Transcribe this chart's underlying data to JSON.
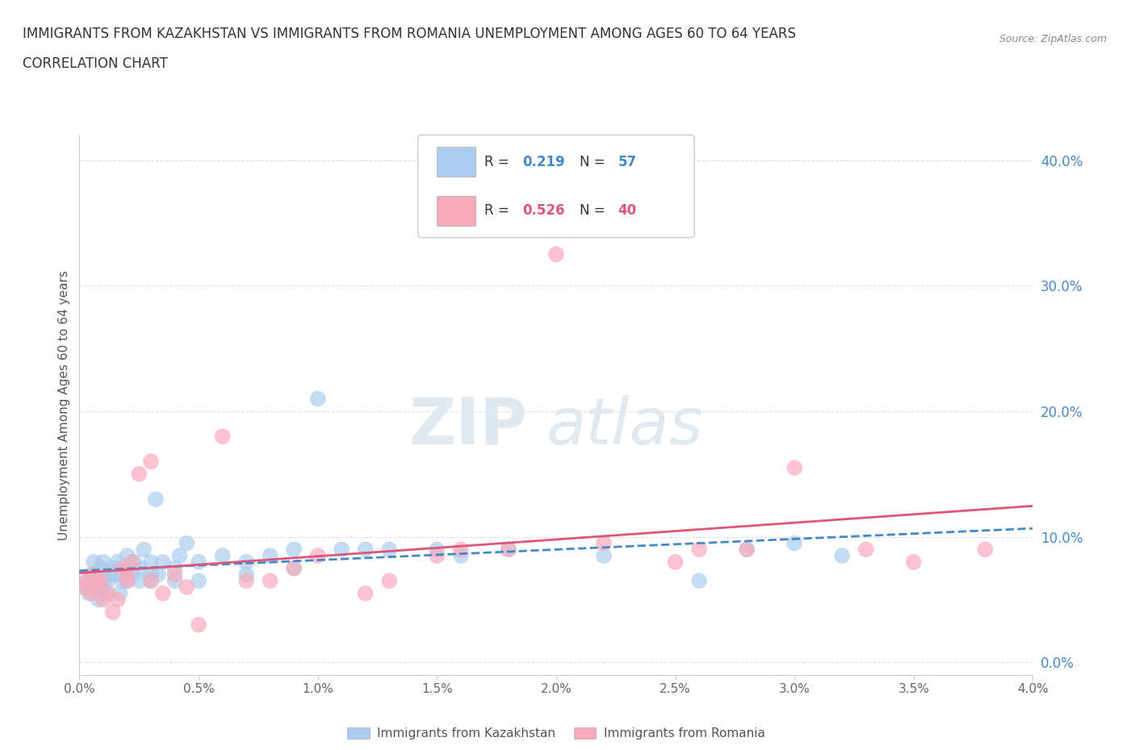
{
  "title_line1": "IMMIGRANTS FROM KAZAKHSTAN VS IMMIGRANTS FROM ROMANIA UNEMPLOYMENT AMONG AGES 60 TO 64 YEARS",
  "title_line2": "CORRELATION CHART",
  "source_text": "Source: ZipAtlas.com",
  "ylabel": "Unemployment Among Ages 60 to 64 years",
  "xlim": [
    0.0,
    0.04
  ],
  "ylim": [
    -0.01,
    0.42
  ],
  "xtick_labels": [
    "0.0%",
    "",
    "0.5%",
    "",
    "1.0%",
    "",
    "1.5%",
    "",
    "2.0%",
    "",
    "2.5%",
    "",
    "3.0%",
    "",
    "3.5%",
    "",
    "4.0%"
  ],
  "xtick_values": [
    0.0,
    0.0025,
    0.005,
    0.0075,
    0.01,
    0.0125,
    0.015,
    0.0175,
    0.02,
    0.0225,
    0.025,
    0.0275,
    0.03,
    0.0325,
    0.035,
    0.0375,
    0.04
  ],
  "ytick_labels": [
    "0.0%",
    "10.0%",
    "20.0%",
    "30.0%",
    "40.0%"
  ],
  "ytick_values": [
    0.0,
    0.1,
    0.2,
    0.3,
    0.4
  ],
  "kazakhstan_color": "#aaccee",
  "romania_color": "#f8aabb",
  "kazakhstan_line_color": "#4488cc",
  "romania_line_color": "#dd5577",
  "legend_R_kaz": "0.219",
  "legend_N_kaz": "57",
  "legend_R_rom": "0.526",
  "legend_N_rom": "40",
  "watermark_zip": "ZIP",
  "watermark_atlas": "atlas",
  "legend_label_kaz": "Immigrants from Kazakhstan",
  "legend_label_rom": "Immigrants from Romania",
  "kazakhstan_x": [
    0.0002,
    0.0003,
    0.0004,
    0.0005,
    0.0006,
    0.0006,
    0.0007,
    0.0008,
    0.0009,
    0.001,
    0.001,
    0.0011,
    0.0012,
    0.0013,
    0.0014,
    0.0015,
    0.0016,
    0.0017,
    0.0018,
    0.002,
    0.002,
    0.002,
    0.0022,
    0.0023,
    0.0025,
    0.0026,
    0.0027,
    0.003,
    0.003,
    0.003,
    0.0032,
    0.0033,
    0.0035,
    0.004,
    0.004,
    0.0042,
    0.0045,
    0.005,
    0.005,
    0.006,
    0.007,
    0.007,
    0.008,
    0.009,
    0.009,
    0.01,
    0.011,
    0.012,
    0.013,
    0.015,
    0.016,
    0.018,
    0.022,
    0.026,
    0.028,
    0.03,
    0.032
  ],
  "kazakhstan_y": [
    0.06,
    0.065,
    0.055,
    0.07,
    0.06,
    0.08,
    0.065,
    0.05,
    0.075,
    0.06,
    0.08,
    0.055,
    0.065,
    0.07,
    0.075,
    0.07,
    0.08,
    0.055,
    0.065,
    0.065,
    0.075,
    0.085,
    0.07,
    0.08,
    0.065,
    0.075,
    0.09,
    0.07,
    0.065,
    0.08,
    0.13,
    0.07,
    0.08,
    0.075,
    0.065,
    0.085,
    0.095,
    0.065,
    0.08,
    0.085,
    0.07,
    0.08,
    0.085,
    0.09,
    0.075,
    0.21,
    0.09,
    0.09,
    0.09,
    0.09,
    0.085,
    0.09,
    0.085,
    0.065,
    0.09,
    0.095,
    0.085
  ],
  "romania_x": [
    0.0002,
    0.0003,
    0.0005,
    0.0006,
    0.0007,
    0.0009,
    0.001,
    0.0012,
    0.0014,
    0.0016,
    0.0018,
    0.002,
    0.002,
    0.0022,
    0.0025,
    0.003,
    0.003,
    0.0035,
    0.004,
    0.0045,
    0.005,
    0.006,
    0.007,
    0.008,
    0.009,
    0.01,
    0.012,
    0.013,
    0.015,
    0.016,
    0.018,
    0.02,
    0.022,
    0.025,
    0.026,
    0.028,
    0.03,
    0.033,
    0.035,
    0.038
  ],
  "romania_y": [
    0.06,
    0.065,
    0.055,
    0.07,
    0.06,
    0.065,
    0.05,
    0.055,
    0.04,
    0.05,
    0.075,
    0.065,
    0.07,
    0.08,
    0.15,
    0.16,
    0.065,
    0.055,
    0.07,
    0.06,
    0.03,
    0.18,
    0.065,
    0.065,
    0.075,
    0.085,
    0.055,
    0.065,
    0.085,
    0.09,
    0.09,
    0.325,
    0.095,
    0.08,
    0.09,
    0.09,
    0.155,
    0.09,
    0.08,
    0.09
  ],
  "background_color": "#ffffff",
  "grid_color": "#dddddd",
  "title_fontsize": 12,
  "axis_label_fontsize": 11,
  "tick_fontsize": 11,
  "ytick_color": "#4488cc",
  "xtick_color": "#666666"
}
